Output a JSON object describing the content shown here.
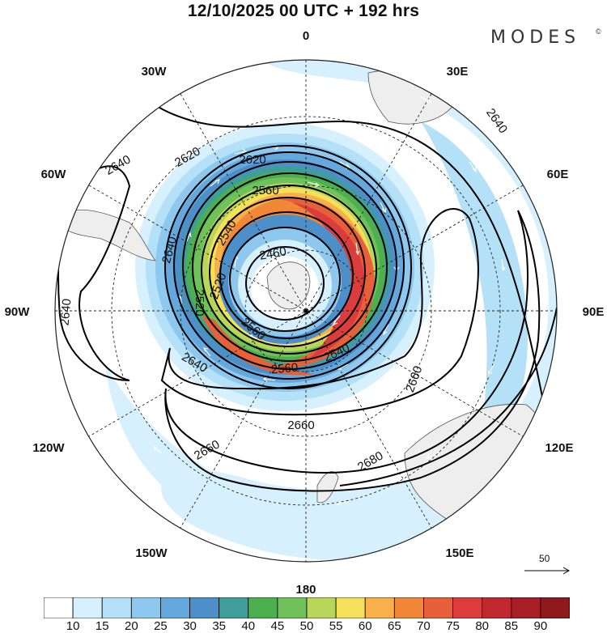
{
  "header": {
    "title": "12/10/2025  00 UTC  + 192 hrs",
    "brand": "MODES",
    "brand_mark": "©"
  },
  "map": {
    "longitude_labels": [
      "0",
      "30E",
      "60E",
      "90E",
      "120E",
      "150E",
      "180",
      "150W",
      "120W",
      "90W",
      "60W",
      "30W"
    ],
    "contour_labels": [
      "2460",
      "2520",
      "2520",
      "2540",
      "2540",
      "2560",
      "2560",
      "2560",
      "2620",
      "2620",
      "2640",
      "2640",
      "2640",
      "2640",
      "2640",
      "2660",
      "2660",
      "2660",
      "2680"
    ]
  },
  "legend": {
    "ticks": [
      "10",
      "15",
      "20",
      "25",
      "30",
      "35",
      "40",
      "45",
      "50",
      "55",
      "60",
      "65",
      "70",
      "75",
      "80",
      "85",
      "90"
    ],
    "colors": [
      "#ffffff",
      "#d6f1fd",
      "#b4e1f8",
      "#8ec8ee",
      "#64a8de",
      "#4d8fc8",
      "#3f9e9a",
      "#4cb04e",
      "#6fc25a",
      "#b8d65a",
      "#f5e05a",
      "#f7b04a",
      "#f08838",
      "#e8603a",
      "#dd3c3c",
      "#c22830",
      "#a81e26",
      "#8e1a1e"
    ]
  },
  "reference_vector": {
    "value": "50"
  }
}
